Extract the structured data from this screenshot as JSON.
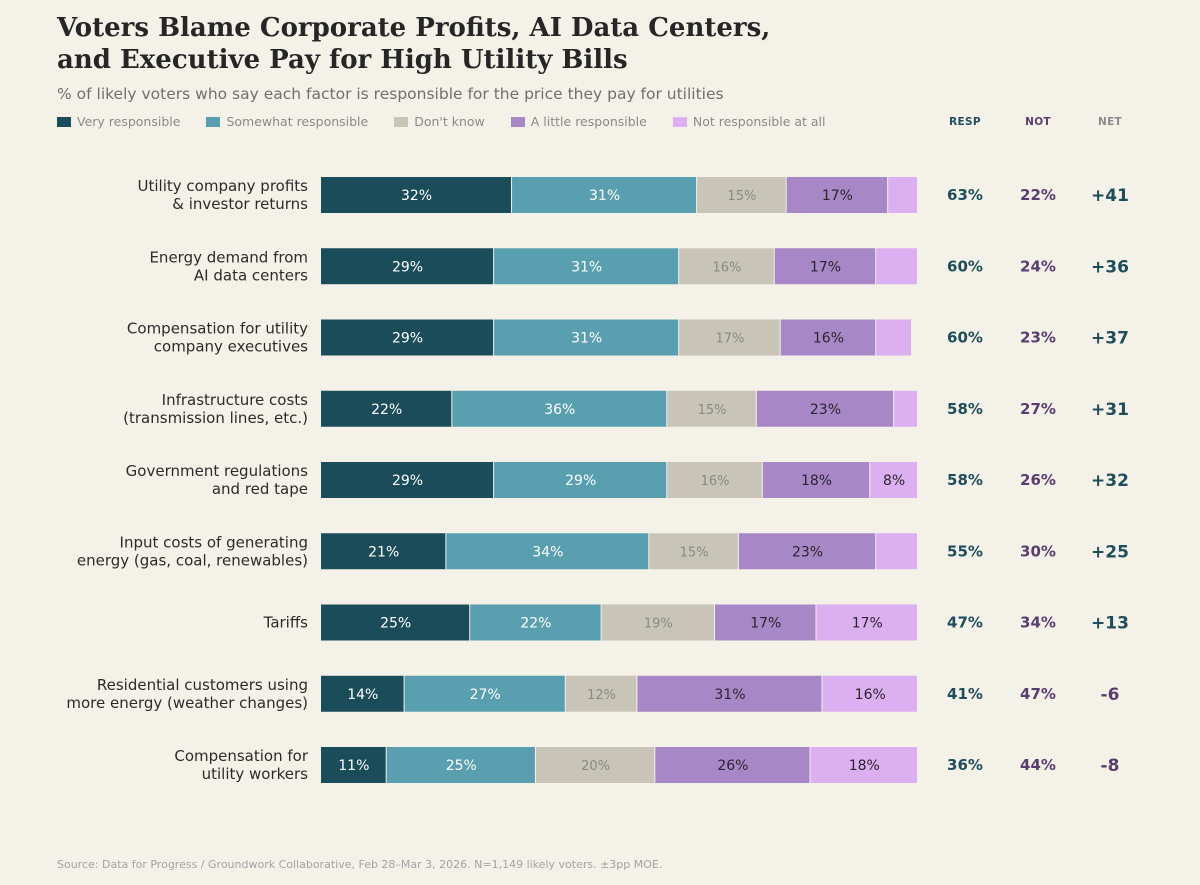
{
  "header": {
    "title_line1": "Voters Blame Corporate Profits, AI Data Centers,",
    "title_line2": "and Executive Pay for High Utility Bills",
    "subtitle": "% of likely voters who say each factor is responsible for the price they pay for utilities"
  },
  "legend": [
    {
      "label": "Very responsible",
      "color": "#1a4d59"
    },
    {
      "label": "Somewhat responsible",
      "color": "#599fb0"
    },
    {
      "label": "Don't know",
      "color": "#c8c5b8"
    },
    {
      "label": "A little responsible",
      "color": "#a787c6"
    },
    {
      "label": "Not responsible at all",
      "color": "#dbaff0"
    }
  ],
  "columns": {
    "resp": "RESP",
    "not": "NOT",
    "net": "NET"
  },
  "column_colors": {
    "resp": "#1f4d59",
    "not": "#5a3d6e",
    "net_pos": "#1f4d59",
    "net_neg": "#5a3d6e"
  },
  "chart_data": {
    "type": "bar",
    "orientation": "horizontal",
    "stacked": true,
    "title": "Voters Blame Corporate Profits, AI Data Centers, and Executive Pay for High Utility Bills",
    "categories": [
      [
        "Utility company profits",
        "& investor returns"
      ],
      [
        "Energy demand from",
        "AI data centers"
      ],
      [
        "Compensation for utility",
        "company executives"
      ],
      [
        "Infrastructure costs",
        "(transmission lines, etc.)"
      ],
      [
        "Government regulations",
        "and red tape"
      ],
      [
        "Input costs of generating",
        "energy (gas, coal, renewables)"
      ],
      [
        "Tariffs"
      ],
      [
        "Residential customers using",
        "more energy (weather changes)"
      ],
      [
        "Compensation for",
        "utility workers"
      ]
    ],
    "series": [
      {
        "name": "Very responsible",
        "values": [
          32,
          29,
          29,
          22,
          29,
          21,
          25,
          14,
          11
        ]
      },
      {
        "name": "Somewhat responsible",
        "values": [
          31,
          31,
          31,
          36,
          29,
          34,
          22,
          27,
          25
        ]
      },
      {
        "name": "Don't know",
        "values": [
          15,
          16,
          17,
          15,
          16,
          15,
          19,
          12,
          20
        ]
      },
      {
        "name": "A little responsible",
        "values": [
          17,
          17,
          16,
          23,
          18,
          23,
          17,
          31,
          26
        ]
      },
      {
        "name": "Not responsible at all",
        "values": [
          5,
          7,
          6,
          4,
          8,
          7,
          17,
          16,
          18
        ]
      }
    ],
    "show_label_min": 8,
    "resp": [
      "63%",
      "60%",
      "60%",
      "58%",
      "58%",
      "55%",
      "47%",
      "41%",
      "36%"
    ],
    "not": [
      "22%",
      "24%",
      "23%",
      "27%",
      "26%",
      "30%",
      "34%",
      "47%",
      "44%"
    ],
    "net": [
      "+41",
      "+36",
      "+37",
      "+31",
      "+32",
      "+25",
      "+13",
      "-6",
      "-8"
    ],
    "xlim": [
      0,
      100
    ],
    "label_colors": [
      "#ffffff",
      "#ffffff",
      "#8a8a82",
      "#2b2430",
      "#2b2430"
    ]
  },
  "footer": {
    "source": "Source: Data for Progress / Groundwork Collaborative, Feb 28–Mar 3, 2026. N=1,149 likely voters. ±3pp MOE."
  }
}
